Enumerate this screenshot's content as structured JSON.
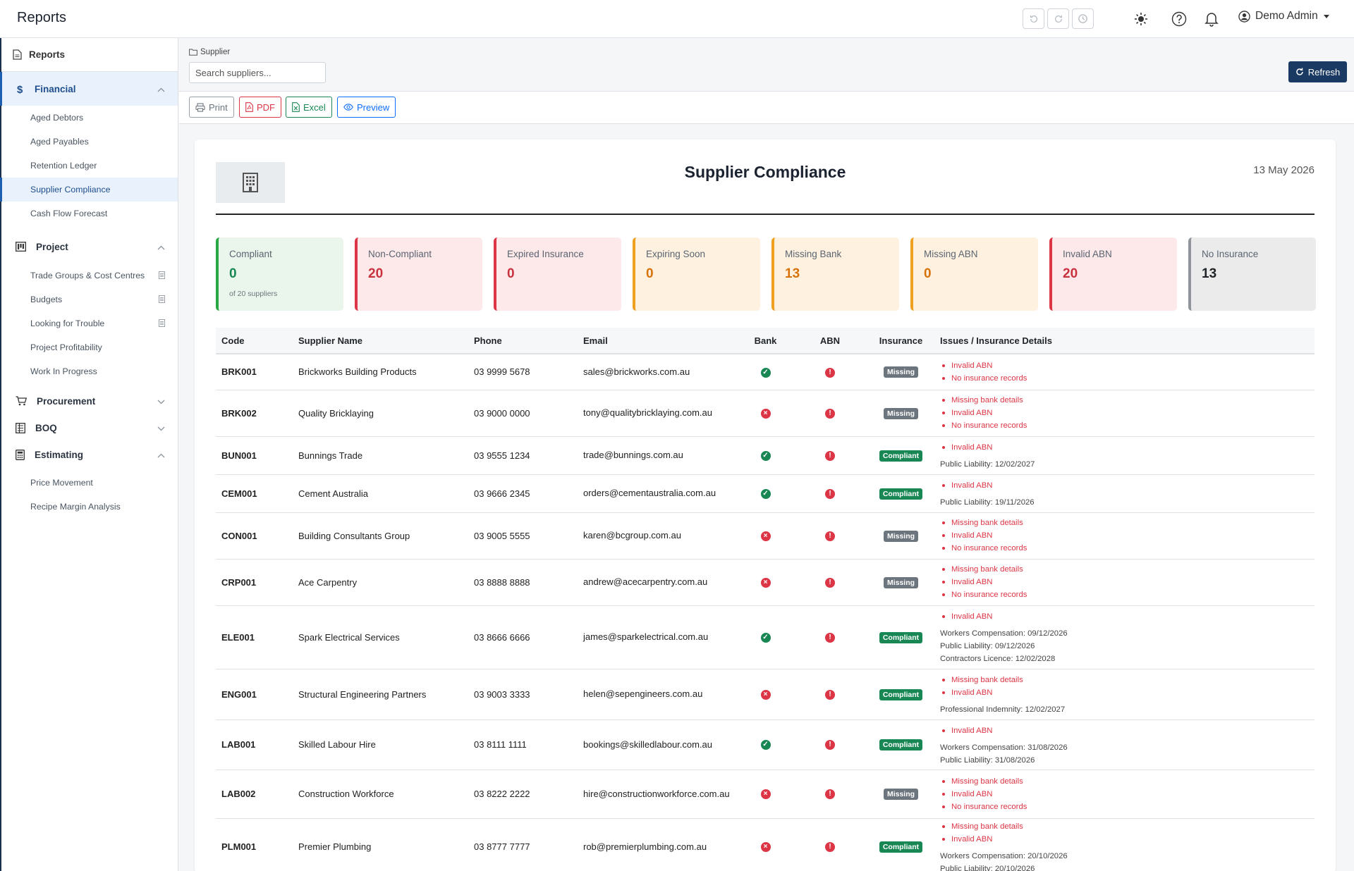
{
  "app": {
    "title": "Reports"
  },
  "user": {
    "name": "Demo Admin"
  },
  "sidebar": {
    "reports_label": "Reports",
    "sections": [
      {
        "key": "financial",
        "label": "Financial",
        "expanded": true,
        "items": [
          "Aged Debtors",
          "Aged Payables",
          "Retention Ledger",
          "Supplier Compliance",
          "Cash Flow Forecast"
        ]
      },
      {
        "key": "project",
        "label": "Project",
        "expanded": true,
        "items": [
          "Trade Groups & Cost Centres",
          "Budgets",
          "Looking for Trouble",
          "Project Profitability",
          "Work In Progress"
        ]
      },
      {
        "key": "procurement",
        "label": "Procurement",
        "expanded": false,
        "items": []
      },
      {
        "key": "boq",
        "label": "BOQ",
        "expanded": false,
        "items": []
      },
      {
        "key": "estimating",
        "label": "Estimating",
        "expanded": true,
        "items": [
          "Price Movement",
          "Recipe Margin Analysis"
        ]
      }
    ],
    "active_item": "Supplier Compliance"
  },
  "filter": {
    "label": "Supplier",
    "placeholder": "Search suppliers...",
    "value": ""
  },
  "refresh_label": "Refresh",
  "export": {
    "print": "Print",
    "pdf": "PDF",
    "excel": "Excel",
    "preview": "Preview"
  },
  "report": {
    "title": "Supplier Compliance",
    "date": "13 May 2026",
    "cards": [
      {
        "label": "Compliant",
        "value": "0",
        "sub": "of 20 suppliers",
        "border": "#28a745",
        "bg": "#eaf6ec",
        "color": "#198754"
      },
      {
        "label": "Non-Compliant",
        "value": "20",
        "sub": "",
        "border": "#dc3545",
        "bg": "#fde8ea",
        "color": "#c8323e"
      },
      {
        "label": "Expired Insurance",
        "value": "0",
        "sub": "",
        "border": "#dc3545",
        "bg": "#fde8ea",
        "color": "#c8323e"
      },
      {
        "label": "Expiring Soon",
        "value": "0",
        "sub": "",
        "border": "#f0a020",
        "bg": "#fef1e0",
        "color": "#d8730c"
      },
      {
        "label": "Missing Bank",
        "value": "13",
        "sub": "",
        "border": "#f0a020",
        "bg": "#fef1e0",
        "color": "#d8730c"
      },
      {
        "label": "Missing ABN",
        "value": "0",
        "sub": "",
        "border": "#f0a020",
        "bg": "#fef1e0",
        "color": "#d8730c"
      },
      {
        "label": "Invalid ABN",
        "value": "20",
        "sub": "",
        "border": "#dc3545",
        "bg": "#fde8ea",
        "color": "#c8323e"
      },
      {
        "label": "No Insurance",
        "value": "13",
        "sub": "",
        "border": "#8f959b",
        "bg": "#ebebeb",
        "color": "#212529"
      }
    ],
    "columns": [
      "Code",
      "Supplier Name",
      "Phone",
      "Email",
      "Bank",
      "ABN",
      "Insurance",
      "Issues / Insurance Details"
    ],
    "rows": [
      {
        "code": "BRK001",
        "name": "Brickworks Building Products",
        "phone": "03 9999 5678",
        "email": "sales@brickworks.com.au",
        "bank": true,
        "abn": false,
        "insurance": "Missing",
        "issues": [
          "Invalid ABN",
          "No insurance records"
        ],
        "details": []
      },
      {
        "code": "BRK002",
        "name": "Quality Bricklaying",
        "phone": "03 9000 0000",
        "email": "tony@qualitybricklaying.com.au",
        "bank": false,
        "abn": false,
        "insurance": "Missing",
        "issues": [
          "Missing bank details",
          "Invalid ABN",
          "No insurance records"
        ],
        "details": []
      },
      {
        "code": "BUN001",
        "name": "Bunnings Trade",
        "phone": "03 9555 1234",
        "email": "trade@bunnings.com.au",
        "bank": true,
        "abn": false,
        "insurance": "Compliant",
        "issues": [
          "Invalid ABN"
        ],
        "details": [
          "Public Liability: 12/02/2027"
        ]
      },
      {
        "code": "CEM001",
        "name": "Cement Australia",
        "phone": "03 9666 2345",
        "email": "orders@cementaustralia.com.au",
        "bank": true,
        "abn": false,
        "insurance": "Compliant",
        "issues": [
          "Invalid ABN"
        ],
        "details": [
          "Public Liability: 19/11/2026"
        ]
      },
      {
        "code": "CON001",
        "name": "Building Consultants Group",
        "phone": "03 9005 5555",
        "email": "karen@bcgroup.com.au",
        "bank": false,
        "abn": false,
        "insurance": "Missing",
        "issues": [
          "Missing bank details",
          "Invalid ABN",
          "No insurance records"
        ],
        "details": []
      },
      {
        "code": "CRP001",
        "name": "Ace Carpentry",
        "phone": "03 8888 8888",
        "email": "andrew@acecarpentry.com.au",
        "bank": false,
        "abn": false,
        "insurance": "Missing",
        "issues": [
          "Missing bank details",
          "Invalid ABN",
          "No insurance records"
        ],
        "details": []
      },
      {
        "code": "ELE001",
        "name": "Spark Electrical Services",
        "phone": "03 8666 6666",
        "email": "james@sparkelectrical.com.au",
        "bank": true,
        "abn": false,
        "insurance": "Compliant",
        "issues": [
          "Invalid ABN"
        ],
        "details": [
          "Workers Compensation: 09/12/2026",
          "Public Liability: 09/12/2026",
          "Contractors Licence: 12/02/2028"
        ]
      },
      {
        "code": "ENG001",
        "name": "Structural Engineering Partners",
        "phone": "03 9003 3333",
        "email": "helen@sepengineers.com.au",
        "bank": false,
        "abn": false,
        "insurance": "Compliant",
        "issues": [
          "Missing bank details",
          "Invalid ABN"
        ],
        "details": [
          "Professional Indemnity: 12/02/2027"
        ]
      },
      {
        "code": "LAB001",
        "name": "Skilled Labour Hire",
        "phone": "03 8111 1111",
        "email": "bookings@skilledlabour.com.au",
        "bank": true,
        "abn": false,
        "insurance": "Compliant",
        "issues": [
          "Invalid ABN"
        ],
        "details": [
          "Workers Compensation: 31/08/2026",
          "Public Liability: 31/08/2026"
        ]
      },
      {
        "code": "LAB002",
        "name": "Construction Workforce",
        "phone": "03 8222 2222",
        "email": "hire@constructionworkforce.com.au",
        "bank": false,
        "abn": false,
        "insurance": "Missing",
        "issues": [
          "Missing bank details",
          "Invalid ABN",
          "No insurance records"
        ],
        "details": []
      },
      {
        "code": "PLM001",
        "name": "Premier Plumbing",
        "phone": "03 8777 7777",
        "email": "rob@premierplumbing.com.au",
        "bank": false,
        "abn": false,
        "insurance": "Compliant",
        "issues": [
          "Missing bank details",
          "Invalid ABN"
        ],
        "details": [
          "Workers Compensation: 20/10/2026",
          "Public Liability: 20/10/2026"
        ]
      }
    ]
  }
}
